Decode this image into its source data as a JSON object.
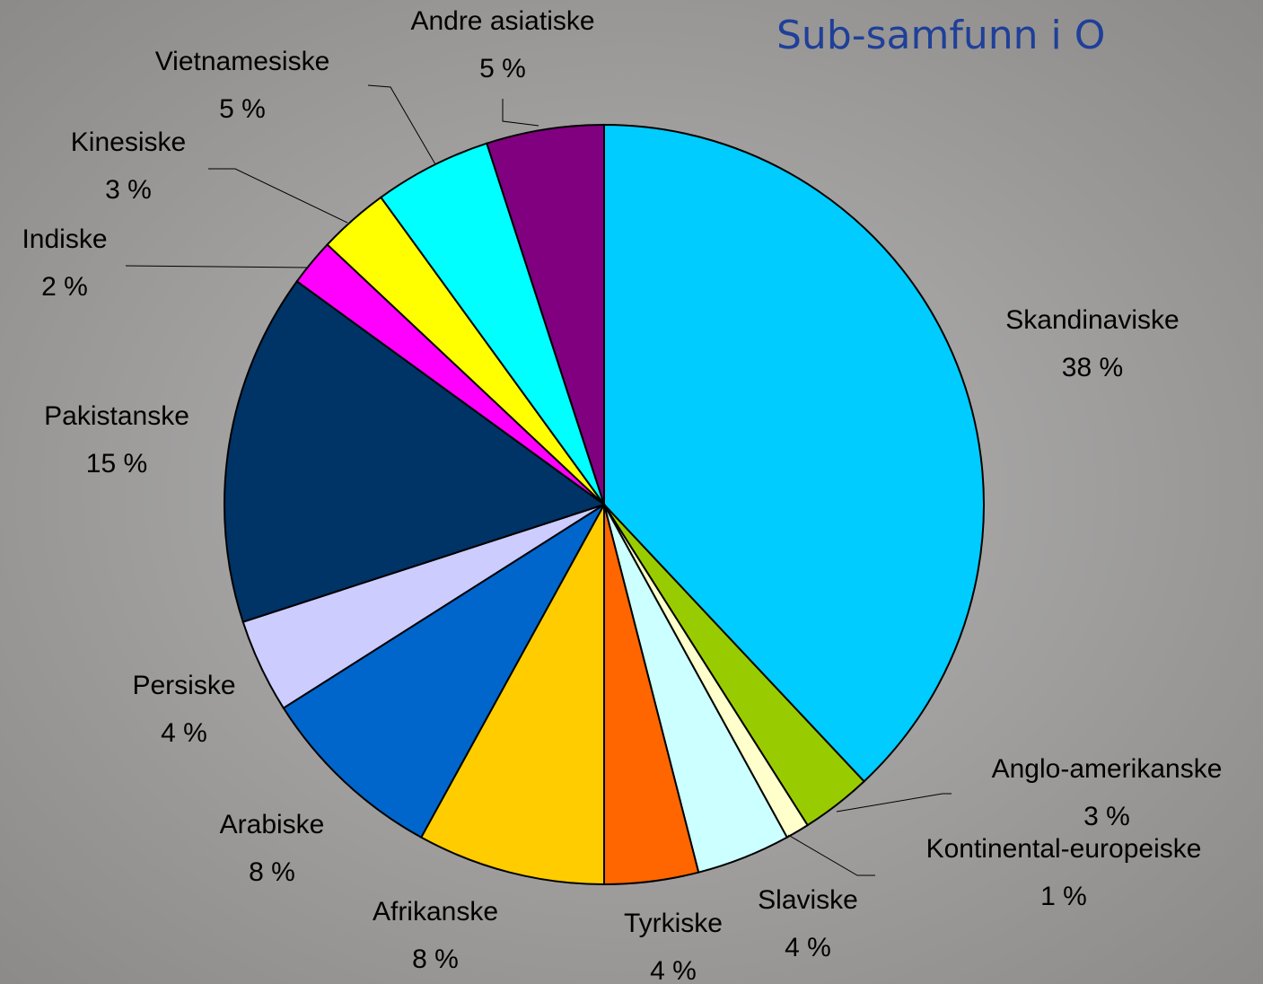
{
  "chart_data": {
    "type": "pie",
    "title": "Sub-samfunn i O",
    "categories": [
      "Skandinaviske",
      "Anglo-amerikanske",
      "Kontinental-europeiske",
      "Slaviske",
      "Tyrkiske",
      "Afrikanske",
      "Arabiske",
      "Persiske",
      "Pakistanske",
      "Indiske",
      "Kinesiske",
      "Vietnamesiske",
      "Andre asiatiske"
    ],
    "values": [
      38,
      3,
      1,
      4,
      4,
      8,
      8,
      4,
      15,
      2,
      3,
      5,
      5
    ],
    "value_labels": [
      "38 %",
      "3 %",
      "1 %",
      "4 %",
      "4 %",
      "8 %",
      "8 %",
      "4 %",
      "15 %",
      "2 %",
      "3 %",
      "5 %",
      "5 %"
    ],
    "colors": [
      "#00ccff",
      "#99cc00",
      "#ffffcc",
      "#ccffff",
      "#ff6600",
      "#ffcc00",
      "#0066cc",
      "#ccccff",
      "#003366",
      "#ff00ff",
      "#ffff00",
      "#00ffff",
      "#800080"
    ]
  }
}
